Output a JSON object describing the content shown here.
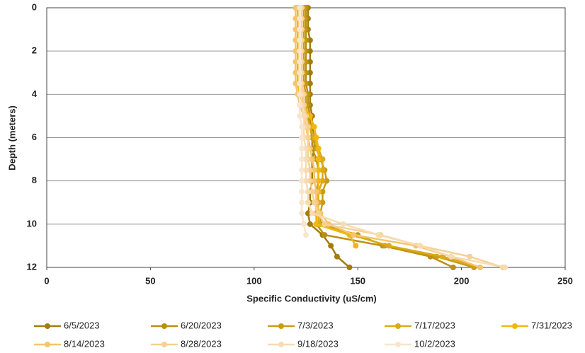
{
  "chart_data": {
    "type": "line",
    "x_label": "Specific Conductivity (uS/cm)",
    "y_label": "Depth (meters)",
    "depths": [
      0,
      0.5,
      1,
      1.5,
      2,
      2.5,
      3,
      3.5,
      4,
      4.5,
      5,
      5.5,
      6,
      6.5,
      7,
      7.5,
      8,
      8.5,
      9,
      9.5,
      10,
      10.5,
      11,
      11.5,
      12
    ],
    "xlim": [
      0,
      250
    ],
    "xticks": [
      0,
      50,
      100,
      150,
      200,
      250
    ],
    "ylim": [
      0,
      12
    ],
    "yticks": [
      0,
      2,
      4,
      6,
      8,
      10,
      12
    ],
    "y_inverted": true,
    "grid": true,
    "series": [
      {
        "name": "6/5/2023",
        "color": "#a47c10",
        "values": [
          126,
          126,
          126,
          127,
          127,
          127,
          127,
          127,
          127,
          127,
          128,
          128,
          129,
          129,
          128,
          128,
          128,
          127,
          127,
          126,
          127,
          133,
          137,
          140,
          146
        ]
      },
      {
        "name": "6/20/2023",
        "color": "#bb8f14",
        "values": [
          125,
          125,
          125,
          125,
          125,
          125,
          125,
          125,
          126,
          126,
          127,
          127,
          128,
          128,
          130,
          131,
          131,
          130,
          130,
          130,
          130,
          134,
          162,
          185,
          196
        ]
      },
      {
        "name": "7/3/2023",
        "color": "#c99c15",
        "values": [
          124,
          124,
          124,
          124,
          124,
          124,
          124,
          124,
          125,
          125,
          126,
          127,
          128,
          130,
          132,
          134,
          135,
          133,
          133,
          132,
          132,
          150,
          163,
          188,
          206
        ]
      },
      {
        "name": "7/17/2023",
        "color": "#dcaa17",
        "values": [
          122,
          122,
          122,
          122,
          122,
          122,
          122,
          122,
          123,
          124,
          125,
          127,
          129,
          131,
          133,
          133,
          133,
          131,
          131,
          131,
          131,
          147,
          165,
          191,
          209
        ]
      },
      {
        "name": "7/31/2023",
        "color": "#f2b70e",
        "values": [
          121,
          121,
          121,
          121,
          121,
          121,
          121,
          121,
          122,
          124,
          127,
          129,
          130,
          131,
          131,
          131,
          131,
          131,
          130,
          130,
          130,
          146,
          149,
          null,
          null
        ]
      },
      {
        "name": "8/14/2023",
        "color": "#f4c56a",
        "values": [
          120,
          120,
          120,
          120,
          120,
          120,
          120,
          120,
          121,
          122,
          124,
          125,
          126,
          127,
          128,
          129,
          129,
          130,
          130,
          132,
          136,
          148,
          178,
          195,
          209
        ]
      },
      {
        "name": "8/28/2023",
        "color": "#f5d193",
        "values": [
          123,
          123,
          123,
          123,
          123,
          123,
          123,
          123,
          124,
          124,
          125,
          126,
          126,
          126,
          126,
          127,
          127,
          128,
          129,
          131,
          134,
          161,
          180,
          204,
          220
        ]
      },
      {
        "name": "9/18/2023",
        "color": "#f7dbb2",
        "values": [
          122,
          122,
          122,
          122,
          122,
          122,
          122,
          122,
          123,
          123,
          124,
          124,
          124,
          125,
          125,
          125,
          125,
          126,
          126,
          128,
          143,
          160,
          180,
          195,
          221
        ]
      },
      {
        "name": "10/2/2023",
        "color": "#f9e5cd",
        "values": [
          122,
          122,
          122,
          122,
          122,
          122,
          122,
          122,
          122,
          122,
          122,
          123,
          123,
          123,
          123,
          123,
          123,
          123,
          123,
          123,
          124,
          125,
          null,
          null,
          null
        ]
      }
    ]
  }
}
